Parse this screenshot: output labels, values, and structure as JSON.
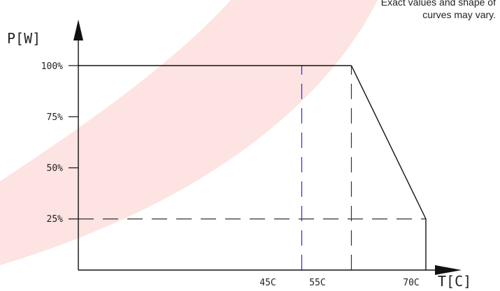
{
  "chart_data": {
    "type": "line",
    "xlabel": "T[C]",
    "ylabel": "P[W]",
    "note_lines": [
      "Exact values and shape of",
      "curves may vary."
    ],
    "x_ticks": [
      "45C",
      "55C",
      "70C"
    ],
    "y_ticks": [
      "100%",
      "75%",
      "50%",
      "25%"
    ],
    "series": [
      {
        "x": [
          55,
          70,
          70
        ],
        "y": [
          100,
          25,
          0
        ]
      }
    ],
    "reference_lines": [
      {
        "axis": "x",
        "value": 45,
        "style": "dashed",
        "color": "#2b2bd6"
      },
      {
        "axis": "x",
        "value": 55,
        "style": "dashed",
        "color": "#333333"
      },
      {
        "axis": "y",
        "value": 25,
        "style": "dashed",
        "color": "#333333"
      }
    ],
    "plateau": {
      "y": 100
    },
    "colors": {
      "background_arc": "#fde3e1",
      "axis": "#111111",
      "line": "#111111"
    },
    "grid": false
  }
}
